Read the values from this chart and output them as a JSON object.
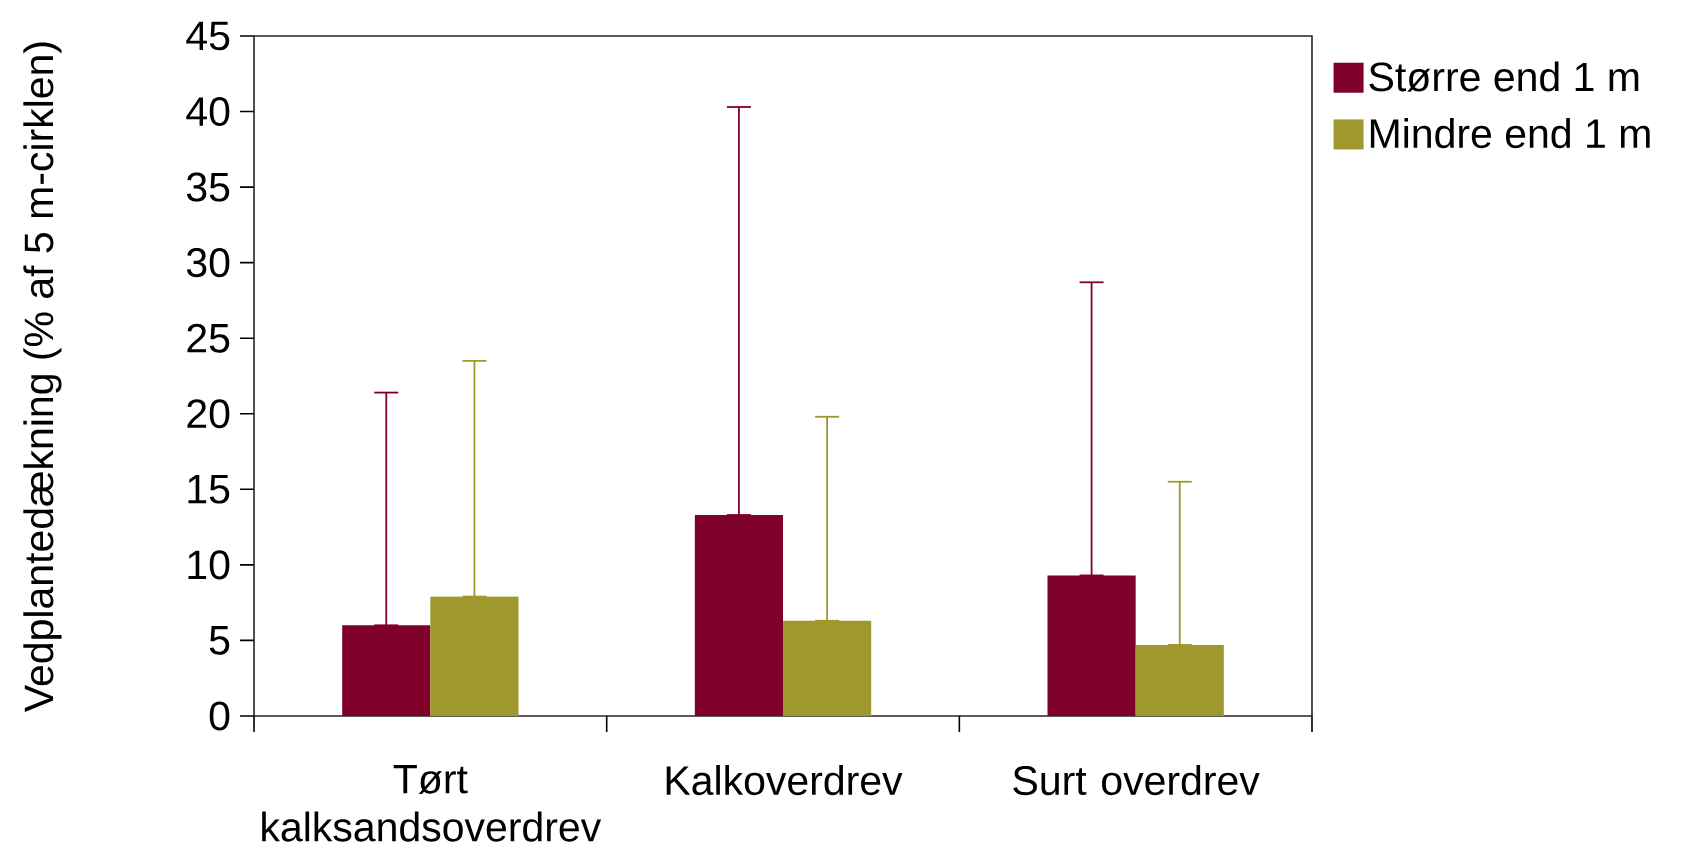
{
  "chart_data": {
    "type": "bar",
    "ylabel": "Vedplantedækning (% af 5 m-cirklen)",
    "categories": [
      "Tørt kalksandsoverdrev",
      "Kalkoverdrev",
      "Surt overdrev"
    ],
    "series": [
      {
        "name": "Større end 1 m",
        "color": "#7f0029",
        "values": [
          6.0,
          13.3,
          9.3
        ],
        "errors": [
          [
            6.0,
            21.4
          ],
          [
            13.3,
            40.3
          ],
          [
            9.3,
            28.7
          ]
        ]
      },
      {
        "name": "Mindre end 1 m",
        "color": "#9f982c",
        "values": [
          7.9,
          6.3,
          4.7
        ],
        "errors": [
          [
            7.9,
            23.5
          ],
          [
            6.3,
            19.8
          ],
          [
            4.7,
            15.5
          ]
        ]
      }
    ],
    "ylim": [
      0,
      45
    ],
    "yticks": [
      0,
      5,
      10,
      15,
      20,
      25,
      30,
      35,
      40,
      45
    ],
    "legend": "right"
  }
}
